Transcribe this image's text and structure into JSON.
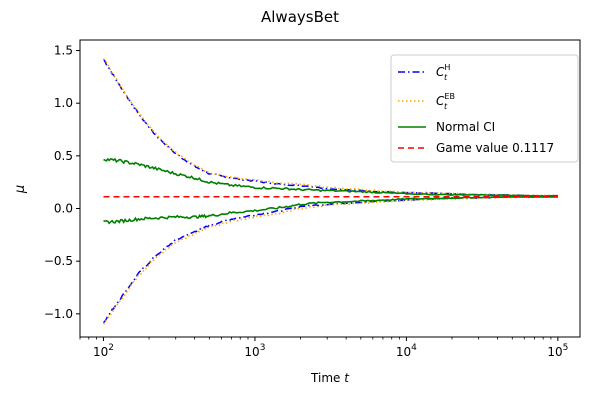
{
  "chart_data": {
    "type": "line",
    "title": "AlwaysBet",
    "xlabel": "Time t",
    "xlabel_parts": {
      "text": "Time ",
      "var": "t"
    },
    "ylabel": "μ",
    "xscale": "log",
    "xlim": [
      70,
      140000
    ],
    "ylim": [
      -1.22,
      1.6
    ],
    "grid": false,
    "legend_position": "top-right",
    "x_ticks": [
      {
        "value": 100,
        "base": "10",
        "exp": "2"
      },
      {
        "value": 1000,
        "base": "10",
        "exp": "3"
      },
      {
        "value": 10000,
        "base": "10",
        "exp": "4"
      },
      {
        "value": 100000,
        "base": "10",
        "exp": "5"
      }
    ],
    "y_ticks": [
      {
        "value": -1.0,
        "label": "−1.0"
      },
      {
        "value": -0.5,
        "label": "−0.5"
      },
      {
        "value": 0.0,
        "label": "0.0"
      },
      {
        "value": 0.5,
        "label": "0.5"
      },
      {
        "value": 1.0,
        "label": "1.0"
      },
      {
        "value": 1.5,
        "label": "1.5"
      }
    ],
    "x": [
      100,
      130,
      170,
      220,
      300,
      400,
      500,
      700,
      1000,
      1500,
      2000,
      3000,
      5000,
      7000,
      10000,
      20000,
      30000,
      50000,
      70000,
      100000
    ],
    "series": [
      {
        "name": "C_t^H",
        "legend": {
          "main": "C",
          "sub": "t",
          "sup": "H"
        },
        "color": "#0000ff",
        "style": "dashdot",
        "upper": [
          1.42,
          1.15,
          0.9,
          0.7,
          0.52,
          0.4,
          0.33,
          0.29,
          0.26,
          0.23,
          0.22,
          0.19,
          0.17,
          0.16,
          0.15,
          0.14,
          0.13,
          0.13,
          0.12,
          0.12
        ],
        "lower": [
          -1.08,
          -0.85,
          -0.62,
          -0.45,
          -0.3,
          -0.22,
          -0.16,
          -0.1,
          -0.06,
          -0.02,
          0.02,
          0.04,
          0.06,
          0.07,
          0.08,
          0.1,
          0.1,
          0.11,
          0.11,
          0.11
        ]
      },
      {
        "name": "C_t^EB",
        "legend": {
          "main": "C",
          "sub": "t",
          "sup": "EB"
        },
        "color": "#ffa500",
        "style": "dotted",
        "upper": [
          1.43,
          1.16,
          0.91,
          0.71,
          0.53,
          0.41,
          0.34,
          0.3,
          0.27,
          0.24,
          0.23,
          0.2,
          0.18,
          0.165,
          0.155,
          0.145,
          0.135,
          0.13,
          0.125,
          0.125
        ],
        "lower": [
          -1.1,
          -0.87,
          -0.64,
          -0.47,
          -0.32,
          -0.24,
          -0.18,
          -0.12,
          -0.08,
          -0.04,
          0.0,
          0.03,
          0.05,
          0.065,
          0.075,
          0.09,
          0.1,
          0.105,
          0.11,
          0.11
        ]
      },
      {
        "name": "Normal CI",
        "legend": {
          "main": "Normal CI"
        },
        "color": "#008000",
        "style": "solid",
        "upper": [
          0.47,
          0.45,
          0.42,
          0.38,
          0.33,
          0.29,
          0.25,
          0.22,
          0.2,
          0.19,
          0.18,
          0.17,
          0.16,
          0.15,
          0.14,
          0.13,
          0.13,
          0.125,
          0.12,
          0.12
        ],
        "lower": [
          -0.13,
          -0.12,
          -0.1,
          -0.09,
          -0.08,
          -0.08,
          -0.07,
          -0.04,
          -0.02,
          0.01,
          0.04,
          0.06,
          0.07,
          0.08,
          0.09,
          0.1,
          0.105,
          0.11,
          0.11,
          0.11
        ]
      }
    ],
    "reference_line": {
      "name": "Game value 0.1117",
      "legend": {
        "main": "Game value 0.1117"
      },
      "value": 0.1117,
      "color": "#ff0000",
      "style": "dashed",
      "x_range": [
        100,
        100000
      ]
    }
  }
}
